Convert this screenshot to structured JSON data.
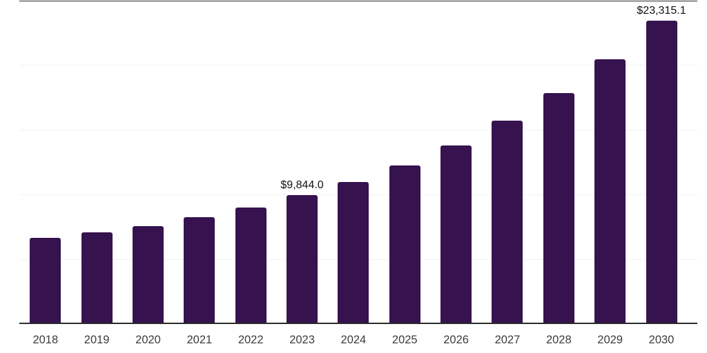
{
  "chart_data": {
    "type": "bar",
    "title": "",
    "xlabel": "",
    "ylabel": "",
    "categories": [
      "2018",
      "2019",
      "2020",
      "2021",
      "2022",
      "2023",
      "2024",
      "2025",
      "2026",
      "2027",
      "2028",
      "2029",
      "2030"
    ],
    "values": [
      6530,
      6960,
      7440,
      8130,
      8890,
      9844.0,
      10880,
      12150,
      13700,
      15580,
      17750,
      20320,
      23315.1
    ],
    "data_labels": [
      "",
      "",
      "",
      "",
      "",
      "$9,844.0",
      "",
      "",
      "",
      "",
      "",
      "",
      "$23,315.1"
    ],
    "ylim": [
      0,
      25000
    ],
    "gridline_step": 5000,
    "grid": "horizontal gridlines, no y-axis tick labels",
    "legend": "none",
    "colors": {
      "bar": "#36124E",
      "axis_line": "#2b2b2b",
      "gridline": "#f2f2f3",
      "top_rule": "#2b2b2b",
      "value_label": "#111111",
      "tick_label": "#3c3c3c",
      "background": "#ffffff"
    }
  }
}
